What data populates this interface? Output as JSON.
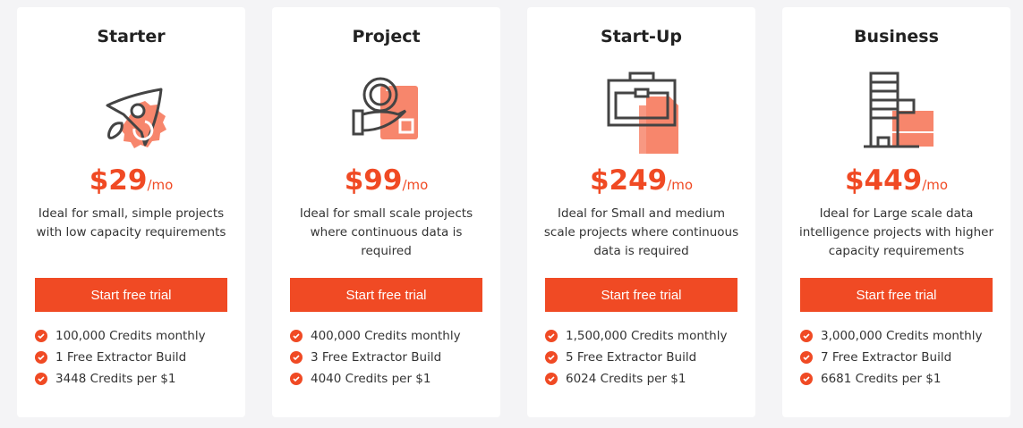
{
  "colors": {
    "accent": "#f04a24",
    "icon_fill": "#f7866c",
    "icon_stroke": "#444444"
  },
  "plans": [
    {
      "title": "Starter",
      "icon": "rocket-gear-icon",
      "price": "$29",
      "period": "/mo",
      "description": "Ideal for small, simple projects with low capacity requirements",
      "cta": "Start free trial",
      "features": [
        "100,000 Credits monthly",
        "1 Free Extractor Build",
        "3448 Credits per $1"
      ]
    },
    {
      "title": "Project",
      "icon": "hand-coin-calendar-icon",
      "price": "$99",
      "period": "/mo",
      "description": "Ideal for small scale projects where continuous data is required",
      "cta": "Start free trial",
      "features": [
        "400,000 Credits monthly",
        "3 Free Extractor Build",
        "4040 Credits per $1"
      ]
    },
    {
      "title": "Start-Up",
      "icon": "briefcase-document-icon",
      "price": "$249",
      "period": "/mo",
      "description": "Ideal for Small and medium scale projects where continuous data is required",
      "cta": "Start free trial",
      "features": [
        "1,500,000 Credits monthly",
        "5 Free Extractor Build",
        "6024 Credits per $1"
      ]
    },
    {
      "title": "Business",
      "icon": "office-building-icon",
      "price": "$449",
      "period": "/mo",
      "description": "Ideal for Large scale data intelligence projects with higher capacity requirements",
      "cta": "Start free trial",
      "features": [
        "3,000,000 Credits monthly",
        "7 Free Extractor Build",
        "6681 Credits per $1"
      ]
    }
  ]
}
